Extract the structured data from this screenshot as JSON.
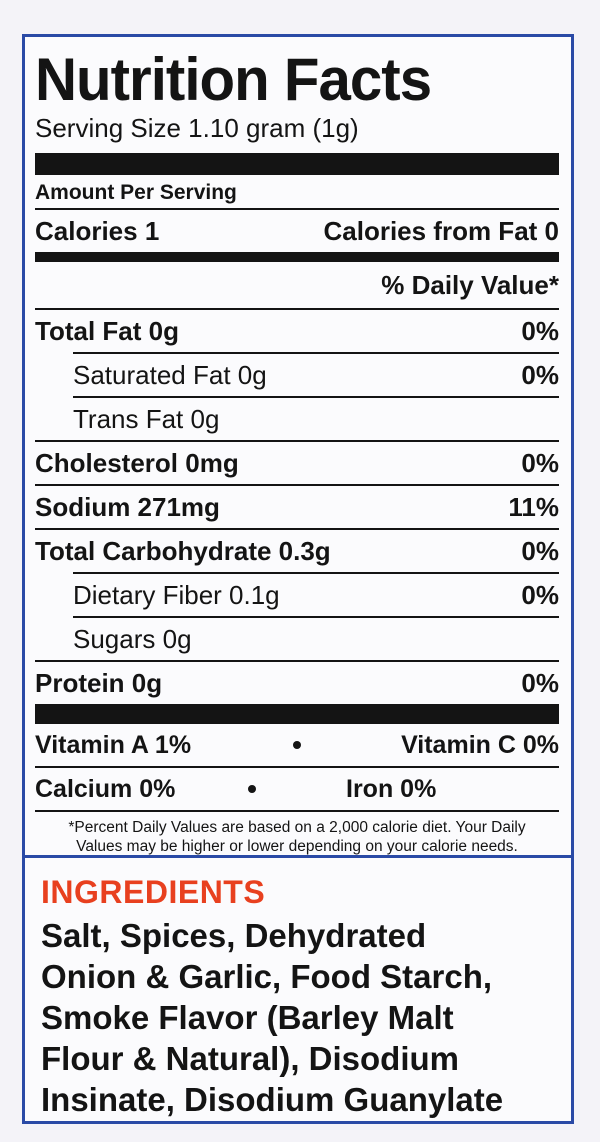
{
  "label": {
    "title": "Nutrition Facts",
    "serving_size": "Serving Size 1.10 gram (1g)",
    "amount_per_serving": "Amount Per Serving",
    "calories": "Calories 1",
    "calories_from_fat": "Calories from Fat 0",
    "daily_value_header": "% Daily Value*",
    "nutrients": [
      {
        "name": "Total Fat 0g",
        "dv": "0%"
      },
      {
        "name": "Saturated Fat 0g",
        "dv": "0%"
      },
      {
        "name": "Trans Fat 0g",
        "dv": ""
      },
      {
        "name": "Cholesterol 0mg",
        "dv": "0%"
      },
      {
        "name": "Sodium 271mg",
        "dv": "11%"
      },
      {
        "name": "Total Carbohydrate 0.3g",
        "dv": "0%"
      },
      {
        "name": "Dietary Fiber 0.1g",
        "dv": "0%"
      },
      {
        "name": "Sugars 0g",
        "dv": ""
      },
      {
        "name": "Protein 0g",
        "dv": "0%"
      }
    ],
    "vitamins": {
      "vitamin_a": "Vitamin A 1%",
      "vitamin_c": "Vitamin C 0%",
      "calcium": "Calcium 0%",
      "iron": "Iron 0%"
    },
    "footnote_line1": "*Percent Daily Values are based on a 2,000 calorie diet. Your Daily",
    "footnote_line2": "Values may be higher or lower depending on your calorie needs."
  },
  "ingredients": {
    "title": "INGREDIENTS",
    "lines": [
      "Salt, Spices, Dehydrated",
      "Onion & Garlic, Food Starch,",
      "Smoke Flavor (Barley Malt",
      "Flour & Natural), Disodium",
      "Insinate, Disodium Guanylate"
    ]
  },
  "colors": {
    "border_blue": "#2a4aa6",
    "ingredients_title": "#e8401f",
    "text": "#141414"
  }
}
